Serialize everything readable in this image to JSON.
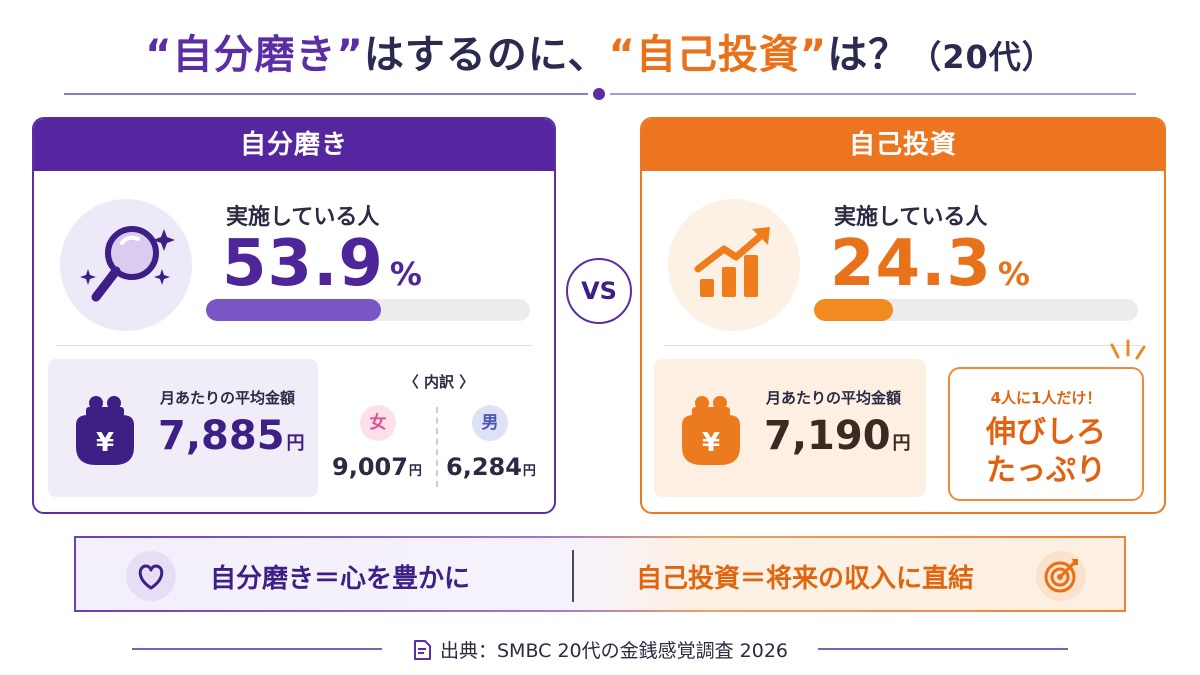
{
  "title": {
    "part1": "“自分磨き”",
    "part2": "はするのに、",
    "part3": "“自己投資”",
    "part4": "は？",
    "suffix": "（20代）"
  },
  "panels": {
    "self_polish": {
      "header": "自分磨き",
      "stat_label": "実施している人",
      "stat_value": "53.9",
      "stat_unit": "%",
      "stat_percent": 53.9,
      "amount_label": "月あたりの平均金額",
      "amount_value": "7,885",
      "amount_unit": "円",
      "breakdown_title": "〈 内訳 〉",
      "female_label": "女",
      "female_value": "9,007",
      "female_unit": "円",
      "male_label": "男",
      "male_value": "6,284",
      "male_unit": "円",
      "icon": "magnifier-sparkle-icon",
      "color": "#55269f"
    },
    "self_investment": {
      "header": "自己投資",
      "stat_label": "実施している人",
      "stat_value": "24.3",
      "stat_unit": "%",
      "stat_percent": 24.3,
      "amount_label": "月あたりの平均金額",
      "amount_value": "7,190",
      "amount_unit": "円",
      "callout_small": "4人に1人だけ！",
      "callout_line1": "伸びしろ",
      "callout_line2": "たっぷり",
      "icon": "growth-chart-icon",
      "color": "#ee7520"
    }
  },
  "vs_label": "VS",
  "bottom": {
    "left_text": "自分磨き＝心を豊かに",
    "right_text": "自己投資＝将来の収入に直結"
  },
  "source": "出典：SMBC 20代の金銭感覚調査 2026"
}
